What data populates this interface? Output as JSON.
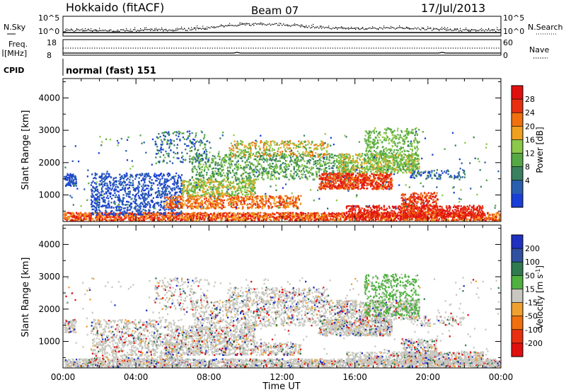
{
  "header": {
    "station": "Hokkaido (fitACF)",
    "beam": "Beam 07",
    "date": "17/Jul/2013"
  },
  "top_panel": {
    "nsky_label": "N.Sky",
    "nsearch_label": "N.Search",
    "left_ticks": [
      "10^5",
      "10^0"
    ],
    "right_ticks": [
      "10^5",
      "10^0"
    ],
    "freq_label_line1": "Freq.",
    "freq_label_line2": "[MHz]",
    "freq_ticks": [
      "18",
      "8"
    ],
    "nave_label": "Nave",
    "nave_ticks": [
      "60",
      "0"
    ],
    "cpid_label": "CPID",
    "cpid_value": "normal (fast) 151"
  },
  "colors": {
    "power": [
      "#1a3fd6",
      "#2a5fb0",
      "#3a8060",
      "#55a845",
      "#8cc84a",
      "#f0a020",
      "#f07010",
      "#e83010",
      "#e01010"
    ],
    "velocity": [
      "#2030c0",
      "#3050a0",
      "#307a50",
      "#50b040",
      "#c8c8c0",
      "#f0a030",
      "#f07010",
      "#e83010",
      "#e01010"
    ]
  },
  "chart_data": [
    {
      "type": "heatmap",
      "name": "power",
      "xlabel": "",
      "ylabel": "Slant Range [km]",
      "x_range_hours": [
        0,
        24
      ],
      "ylim": [
        180,
        4600
      ],
      "yticks": [
        1000,
        2000,
        3000,
        4000
      ],
      "colorbar_label": "Power [dB]",
      "colorbar_ticks": [
        4,
        8,
        12,
        16,
        20,
        24,
        28
      ]
    },
    {
      "type": "heatmap",
      "name": "velocity",
      "xlabel": "Time UT",
      "ylabel": "Slant Range [km]",
      "x_range_hours": [
        0,
        24
      ],
      "x_tick_labels": [
        "00:00",
        "04:00",
        "08:00",
        "12:00",
        "16:00",
        "20:00",
        "00:00"
      ],
      "ylim": [
        180,
        4600
      ],
      "yticks": [
        1000,
        2000,
        3000,
        4000
      ],
      "colorbar_label": "Velocity [m s^-1]",
      "colorbar_ticks": [
        200,
        100,
        50,
        15,
        -15,
        -50,
        -100,
        -200
      ]
    }
  ]
}
